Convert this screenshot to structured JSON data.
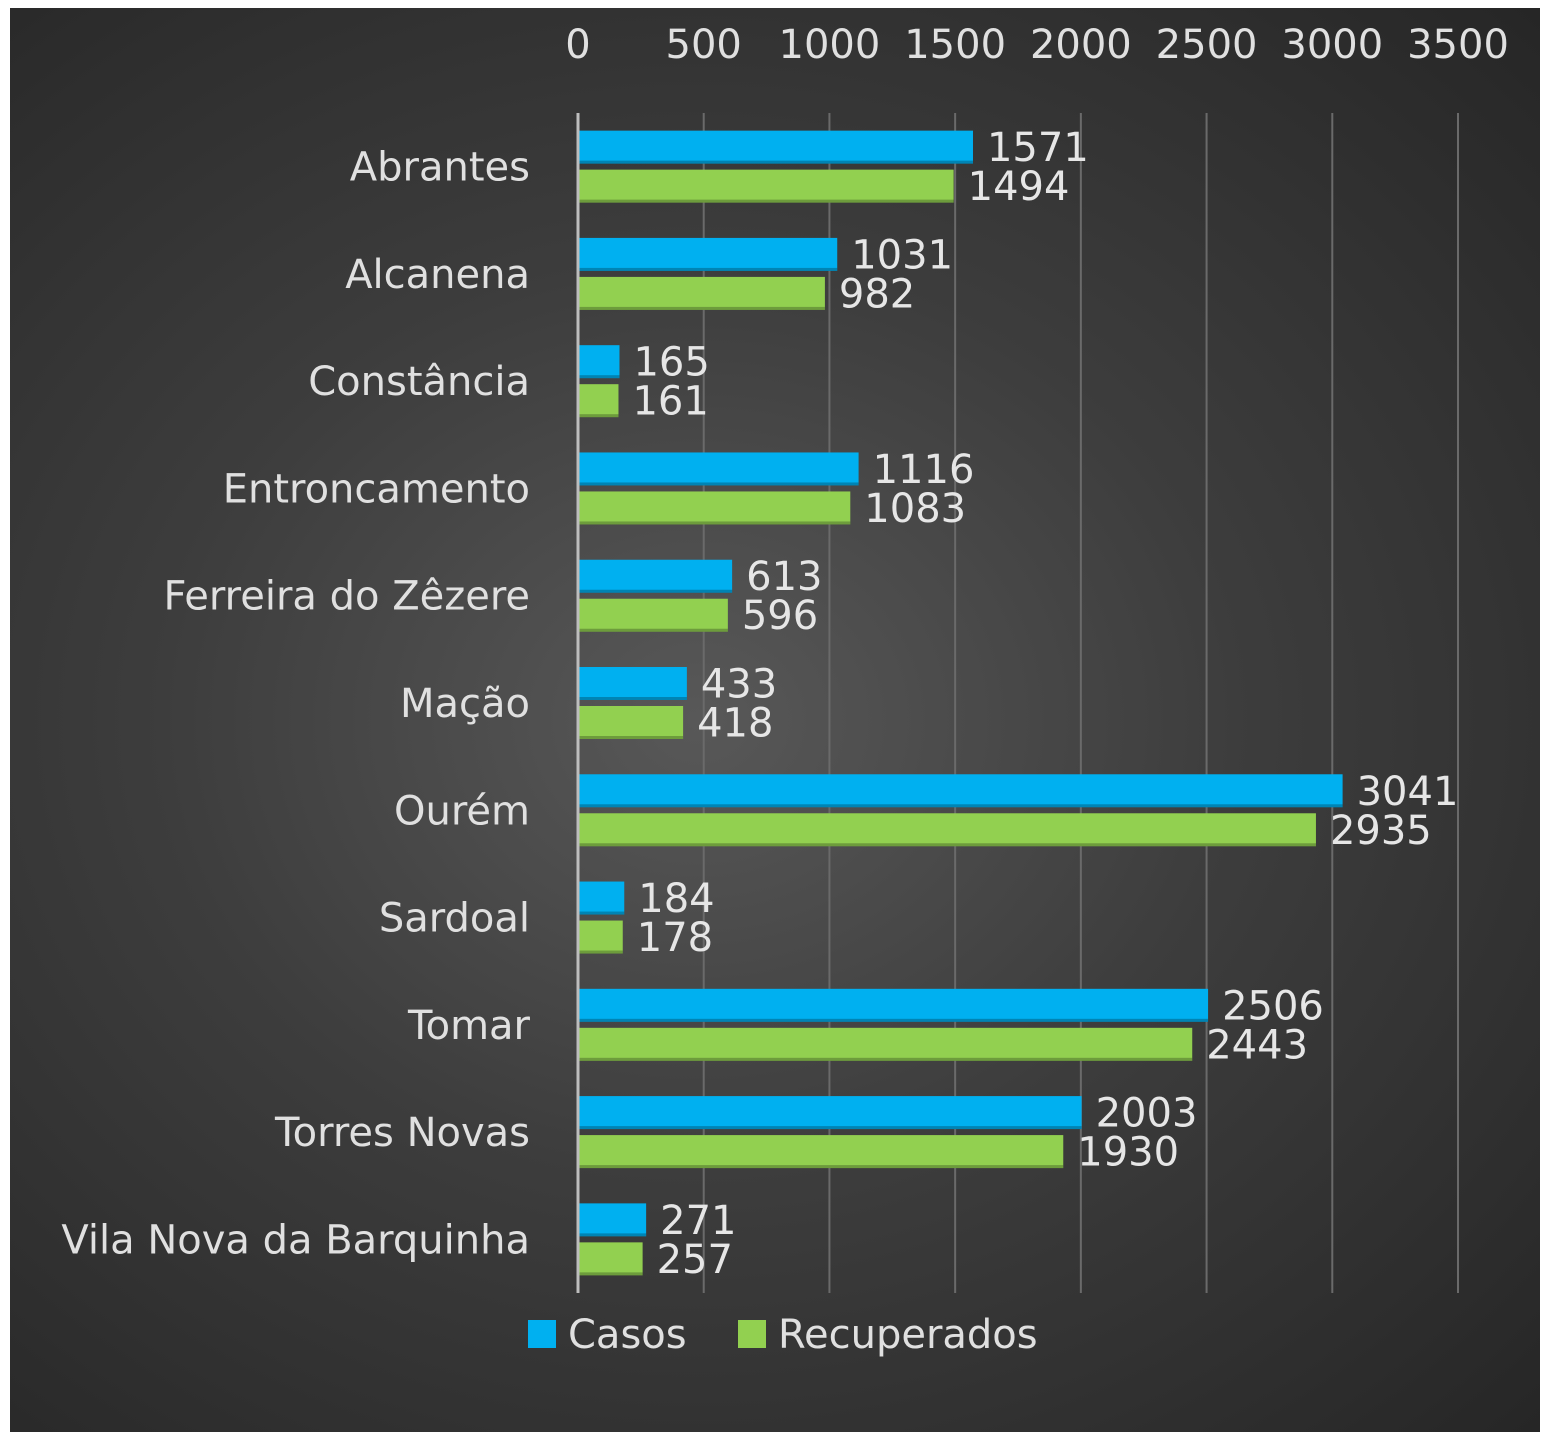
{
  "chart_data": {
    "type": "bar",
    "orientation": "horizontal",
    "categories": [
      "Abrantes",
      "Alcanena",
      "Constância",
      "Entroncamento",
      "Ferreira do Zêzere",
      "Mação",
      "Ourém",
      "Sardoal",
      "Tomar",
      "Torres Novas",
      "Vila Nova da Barquinha"
    ],
    "series": [
      {
        "name": "Casos",
        "color": "#00b0f0",
        "values": [
          1571,
          1031,
          165,
          1116,
          613,
          433,
          3041,
          184,
          2506,
          2003,
          271
        ]
      },
      {
        "name": "Recuperados",
        "color": "#92d050",
        "values": [
          1494,
          982,
          161,
          1083,
          596,
          418,
          2935,
          178,
          2443,
          1930,
          257
        ]
      }
    ],
    "title": "",
    "xlabel": "",
    "ylabel": "",
    "xlim": [
      0,
      3500
    ],
    "ticks": [
      0,
      500,
      1000,
      1500,
      2000,
      2500,
      3000,
      3500
    ],
    "x_axis_position": "top",
    "grid": true,
    "data_labels": true,
    "legend_position": "bottom"
  }
}
